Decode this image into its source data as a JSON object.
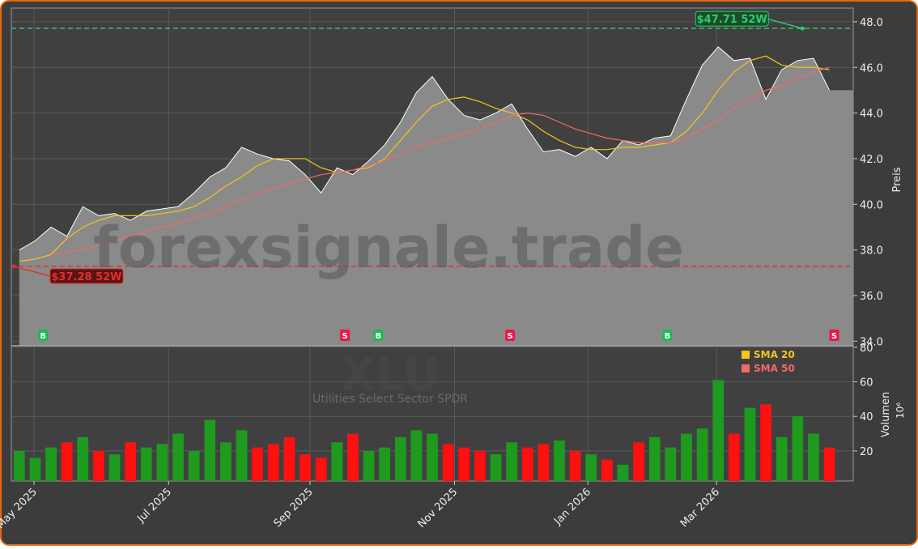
{
  "chart_data": {
    "type": "stock",
    "watermark": "forexsignale.trade",
    "symbol": "XLU",
    "name": "Utilities Select Sector SPDR",
    "price_axis_label": "Preis",
    "volume_axis_label": "Volumen",
    "volume_unit": "10⁶",
    "xlim": [
      0,
      53
    ],
    "xticks": [
      {
        "value": 1.43,
        "label": "May 2025"
      },
      {
        "value": 9.9,
        "label": "Jul 2025"
      },
      {
        "value": 18.8,
        "label": "Sep 2025"
      },
      {
        "value": 27.9,
        "label": "Nov 2025"
      },
      {
        "value": 36.3,
        "label": "Jan 2026"
      },
      {
        "value": 44.4,
        "label": "Mar 2026"
      }
    ],
    "ylim": [
      33.8,
      48.6
    ],
    "yticks": [
      {
        "value": 34,
        "label": "34.0"
      },
      {
        "value": 36,
        "label": "36.0"
      },
      {
        "value": 38,
        "label": "38.0"
      },
      {
        "value": 40,
        "label": "40.0"
      },
      {
        "value": 42,
        "label": "42.0"
      },
      {
        "value": 44,
        "label": "44.0"
      },
      {
        "value": 46,
        "label": "46.0"
      },
      {
        "value": 48,
        "label": "48.0"
      }
    ],
    "y2lim": [
      2.6,
      80.9
    ],
    "y2ticks": [
      20,
      40,
      60,
      80
    ],
    "grid": true,
    "close": {
      "color": "#ffffff",
      "area_color": "#8a8a8a",
      "values": [
        38.0,
        38.4,
        39.0,
        38.6,
        39.9,
        39.5,
        39.6,
        39.3,
        39.7,
        39.8,
        39.9,
        40.5,
        41.2,
        41.6,
        42.5,
        42.2,
        42.0,
        41.9,
        41.3,
        40.5,
        41.6,
        41.3,
        41.9,
        42.6,
        43.6,
        44.9,
        45.6,
        44.6,
        43.9,
        43.7,
        44.0,
        44.4,
        43.3,
        42.3,
        42.4,
        42.1,
        42.5,
        42.0,
        42.8,
        42.6,
        42.9,
        43.0,
        44.6,
        46.1,
        46.9,
        46.3,
        46.4,
        44.6,
        45.9,
        46.3,
        46.4,
        45.0
      ]
    },
    "series": [
      {
        "name": "SMA 20",
        "color": "#f5c518",
        "values": [
          37.5,
          37.6,
          37.8,
          38.5,
          39.0,
          39.3,
          39.5,
          39.5,
          39.5,
          39.6,
          39.7,
          39.9,
          40.3,
          40.8,
          41.2,
          41.7,
          42.0,
          42.0,
          42.0,
          41.6,
          41.4,
          41.5,
          41.6,
          42.0,
          42.8,
          43.6,
          44.3,
          44.6,
          44.7,
          44.5,
          44.2,
          44.0,
          43.7,
          43.2,
          42.8,
          42.5,
          42.4,
          42.4,
          42.5,
          42.5,
          42.6,
          42.7,
          43.2,
          44.0,
          45.0,
          45.8,
          46.3,
          46.5,
          46.1,
          46.0,
          46.0,
          45.9
        ]
      },
      {
        "name": "SMA 50",
        "color": "#f06a6a",
        "values": [
          null,
          null,
          37.8,
          37.9,
          38.0,
          38.2,
          38.4,
          38.6,
          38.8,
          39.0,
          39.2,
          39.4,
          39.6,
          39.9,
          40.2,
          40.5,
          40.7,
          40.9,
          41.1,
          41.3,
          41.4,
          41.5,
          41.7,
          41.9,
          42.2,
          42.5,
          42.7,
          42.9,
          43.1,
          43.3,
          43.6,
          43.9,
          44.0,
          43.9,
          43.6,
          43.3,
          43.1,
          42.9,
          42.8,
          42.7,
          42.7,
          42.7,
          42.9,
          43.3,
          43.7,
          44.2,
          44.6,
          45.0,
          45.2,
          45.5,
          45.8,
          46.0
        ]
      }
    ],
    "volume": {
      "up_color": "#1e9a1e",
      "down_color": "#ff1010",
      "values": [
        20,
        16,
        22,
        25,
        28,
        20,
        18,
        25,
        22,
        24,
        30,
        20,
        38,
        25,
        32,
        22,
        24,
        28,
        18,
        16,
        25,
        30,
        20,
        22,
        28,
        32,
        30,
        24,
        22,
        20,
        18,
        25,
        22,
        24,
        26,
        20,
        18,
        15,
        12,
        25,
        28,
        22,
        30,
        33,
        61,
        30,
        45,
        47,
        28,
        40,
        30,
        22
      ]
    },
    "high_52w": {
      "value": 47.71,
      "x": 49.8,
      "label": "$47.71 52W",
      "color": "#2ecc71"
    },
    "low_52w": {
      "value": 37.28,
      "x": 0.15,
      "label": "$37.28 52W",
      "color": "#e03030"
    },
    "signals": [
      {
        "label": "B",
        "x": 2.0,
        "color": "#1db954"
      },
      {
        "label": "S",
        "x": 21.0,
        "color": "#e8194a"
      },
      {
        "label": "B",
        "x": 23.1,
        "color": "#1db954"
      },
      {
        "label": "S",
        "x": 31.4,
        "color": "#e8194a"
      },
      {
        "label": "B",
        "x": 41.3,
        "color": "#1db954"
      },
      {
        "label": "S",
        "x": 51.8,
        "color": "#e8194a"
      }
    ]
  }
}
